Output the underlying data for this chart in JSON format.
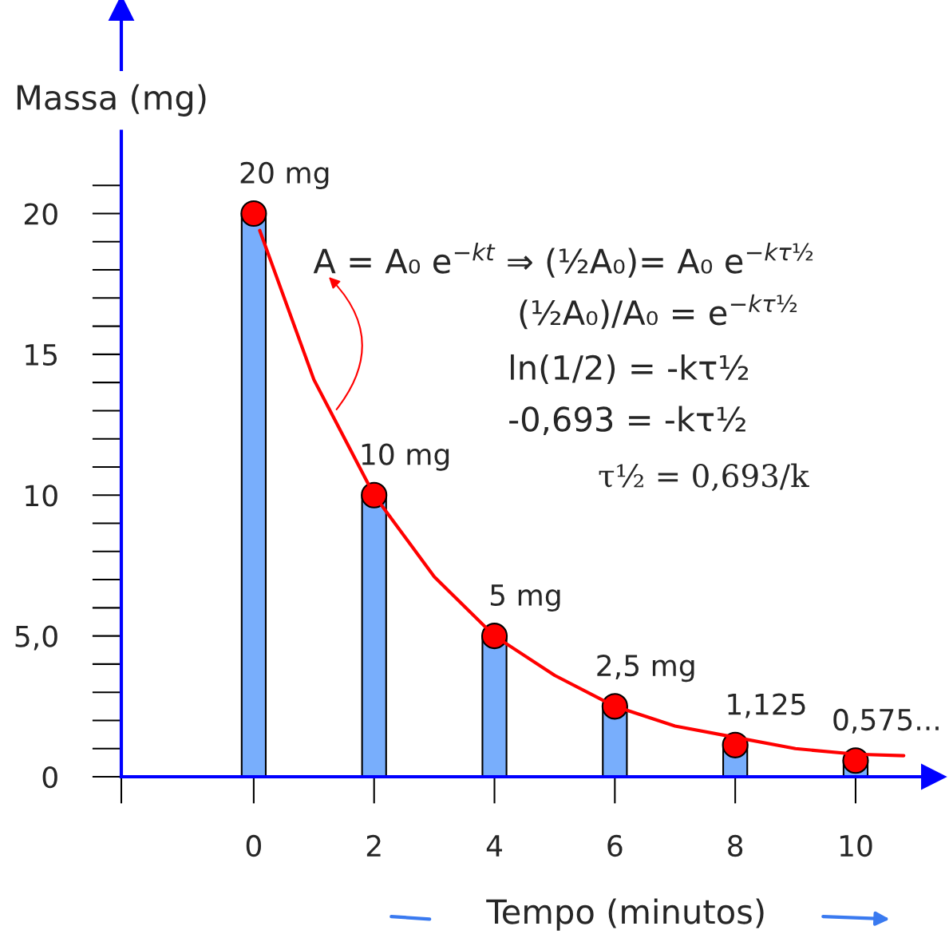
{
  "chart_data": {
    "type": "bar",
    "xlabel": "Tempo (minutos)",
    "ylabel": "Massa (mg)",
    "x": [
      0,
      2,
      4,
      6,
      8,
      10
    ],
    "series": [
      {
        "color": "#78aefc",
        "values": [
          20,
          10,
          5,
          2.5,
          1.125,
          0.575
        ],
        "value_labels": [
          "20 mg",
          "10 mg",
          "5 mg",
          "2,5 mg",
          "1,125",
          "0,575..."
        ]
      },
      {
        "type": "scatter",
        "color": "#ff0000",
        "marker": "circle",
        "values": [
          20,
          10,
          5,
          2.5,
          1.125,
          0.575
        ]
      },
      {
        "type": "line",
        "color": "#ff0000",
        "x": [
          0.1,
          1,
          2,
          3,
          4,
          5,
          6,
          7,
          8,
          9,
          10,
          10.8
        ],
        "values": [
          19.4,
          14.1,
          10,
          7.1,
          5,
          3.6,
          2.5,
          1.8,
          1.4,
          1.0,
          0.8,
          0.75
        ]
      }
    ],
    "xlim": [
      -2.2,
      11.3
    ],
    "xticks": [
      {
        "value": -2.2,
        "label": null
      },
      0,
      2,
      4,
      6,
      8,
      10
    ],
    "ylim": [
      0,
      27.3
    ],
    "yticks": [
      0,
      {
        "value": 5,
        "label": "5,0"
      },
      10,
      15,
      20
    ],
    "annotations": [
      "A = A₀ e$^{−kt}$ ⇒ (½A₀)= A₀ e$^{−kτ½}$",
      "(½A₀)/A₀ = e$^{−kτ½}$",
      "ln(1/2) = -kτ½",
      "-0,693 = -kτ½",
      "τ½ = 0,693/k"
    ],
    "grid": false,
    "legend": false
  }
}
